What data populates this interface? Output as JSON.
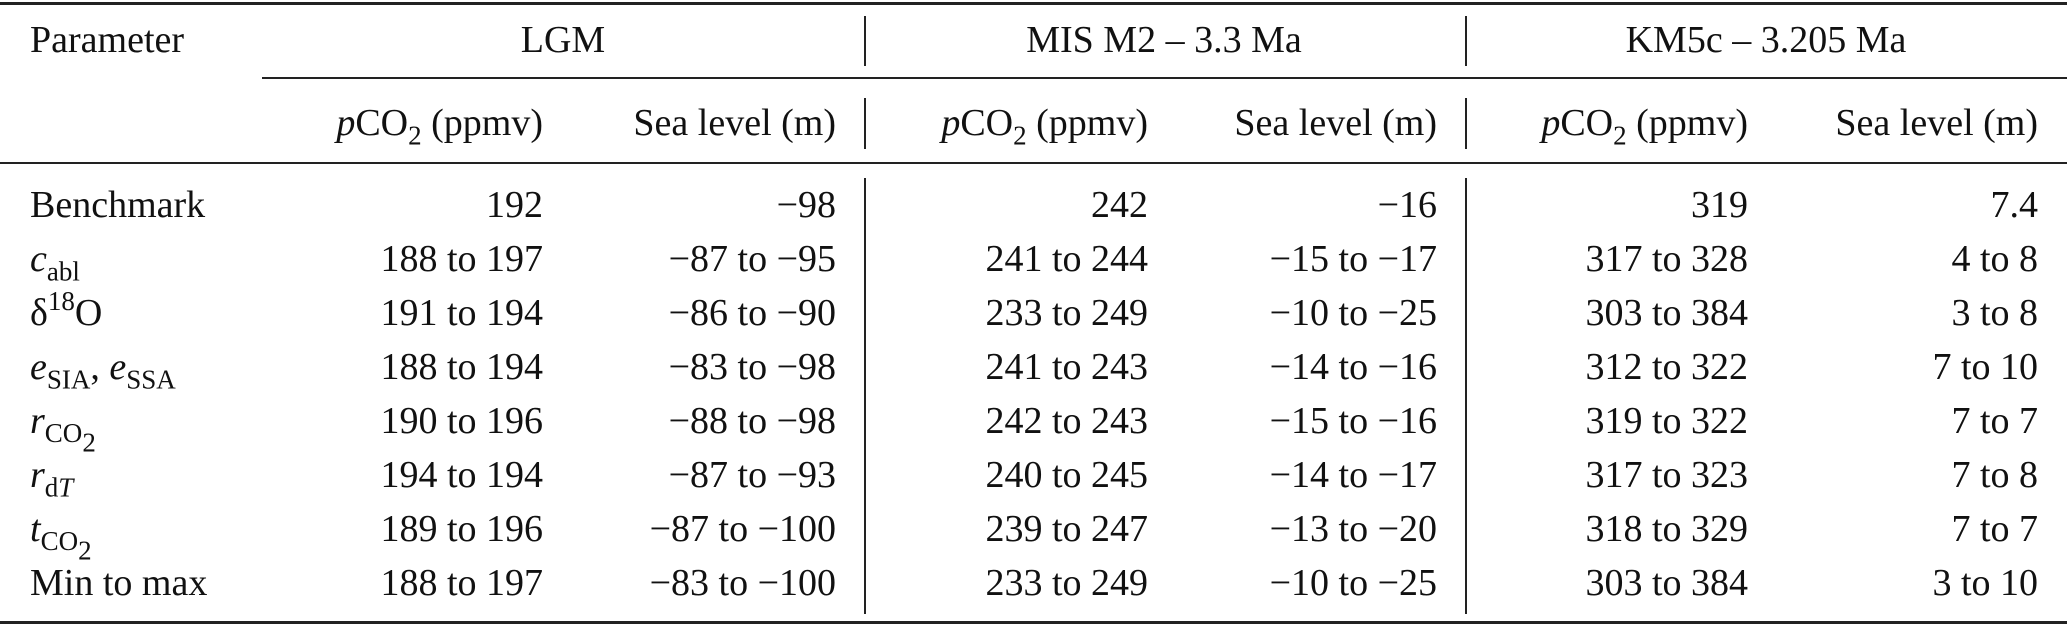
{
  "header": {
    "parameter": "Parameter",
    "groups": [
      "LGM",
      "MIS M2 – 3.3 Ma",
      "KM5c – 3.205 Ma"
    ],
    "pco2_prefix": "p",
    "pco2_main": "CO",
    "pco2_sub": "2",
    "pco2_unit": "(ppmv)",
    "sea_level": "Sea level (m)"
  },
  "rows": [
    {
      "label": [
        "Benchmark"
      ],
      "values": [
        "192",
        "−98",
        "242",
        "−16",
        "319",
        "7.4"
      ]
    },
    {
      "label": [
        "c",
        "abl"
      ],
      "values": [
        "188 to 197",
        "−87 to −95",
        "241 to 244",
        "−15 to −17",
        "317 to 328",
        "4 to 8"
      ]
    },
    {
      "label": [
        "δ",
        "18",
        "O"
      ],
      "values": [
        "191 to 194",
        "−86 to −90",
        "233 to 249",
        "−10 to −25",
        "303 to 384",
        "3 to 8"
      ]
    },
    {
      "label": [
        "e",
        "SIA",
        ", ",
        "e",
        "SSA"
      ],
      "values": [
        "188 to 194",
        "−83 to −98",
        "241 to 243",
        "−14 to −16",
        "312 to 322",
        "7 to 10"
      ]
    },
    {
      "label": [
        "r",
        "CO",
        "2"
      ],
      "values": [
        "190 to 196",
        "−88 to −98",
        "242 to 243",
        "−15 to −16",
        "319 to 322",
        "7 to 7"
      ]
    },
    {
      "label": [
        "r",
        "d",
        "T"
      ],
      "values": [
        "194 to 194",
        "−87 to −93",
        "240 to 245",
        "−14 to −17",
        "317 to 323",
        "7 to 8"
      ]
    },
    {
      "label": [
        "t",
        "CO",
        "2"
      ],
      "values": [
        "189 to 196",
        "−87 to −100",
        "239 to 247",
        "−13 to −20",
        "318 to 329",
        "7 to 7"
      ]
    },
    {
      "label": [
        "Min to max"
      ],
      "values": [
        "188 to 197",
        "−83 to −100",
        "233 to 249",
        "−10 to −25",
        "303 to 384",
        "3 to 10"
      ]
    }
  ]
}
